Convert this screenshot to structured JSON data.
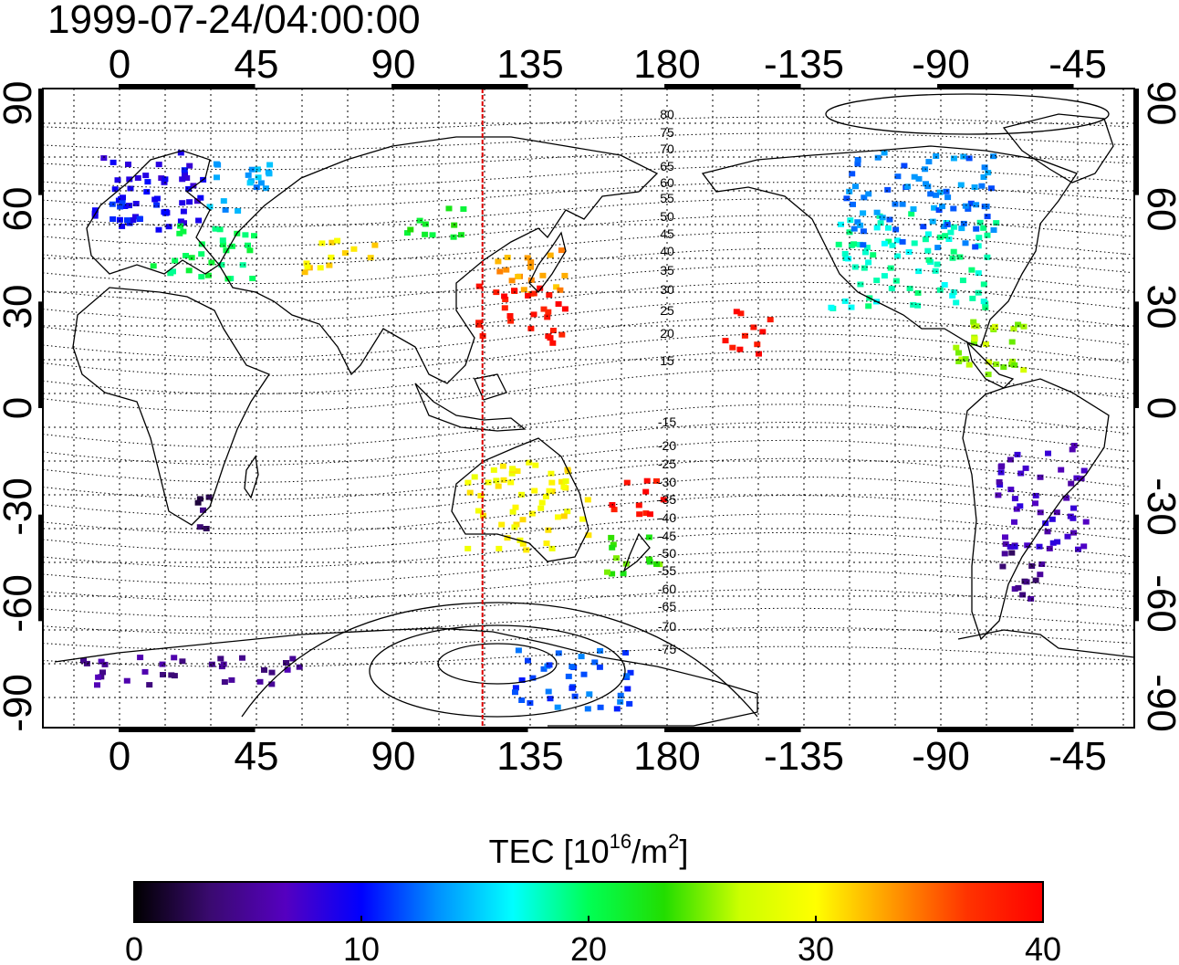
{
  "map": {
    "timestamp": "1999-07-24/04:00:00",
    "top_lon_labels": [
      "0",
      "45",
      "90",
      "135",
      "180",
      "-135",
      "-90",
      "-45"
    ],
    "bottom_lon_labels": [
      "0",
      "45",
      "90",
      "135",
      "180",
      "-135",
      "-90",
      "-45"
    ],
    "left_lat_labels": [
      "90",
      "60",
      "30",
      "0",
      "-30",
      "-60",
      "-90"
    ],
    "right_lat_labels": [
      "90",
      "60",
      "30",
      "0",
      "-30",
      "-60",
      "-90"
    ],
    "contour_labels_north": [
      "80",
      "75",
      "70",
      "65",
      "60",
      "55",
      "50",
      "45",
      "40",
      "35",
      "30",
      "25",
      "20",
      "15"
    ],
    "contour_labels_south": [
      "-15",
      "-20",
      "-25",
      "-30",
      "-35",
      "-40",
      "-45",
      "-50",
      "-55",
      "-60",
      "-65",
      "-70",
      "-75"
    ],
    "lon_range": [
      -25,
      335
    ],
    "lat_range": [
      -90,
      90
    ],
    "local_noon_meridian_lon": 120,
    "colors": {
      "meridian": "#dd0000",
      "frame": "#000000"
    }
  },
  "colorbar": {
    "title_prefix": "TEC  [10",
    "title_exp1": "16",
    "title_mid": "/m",
    "title_exp2": "2",
    "title_suffix": "]",
    "tick_labels": [
      "0",
      "10",
      "20",
      "30",
      "40"
    ],
    "range": [
      0,
      40
    ],
    "stops": [
      "#000000",
      "#3a0a70",
      "#5500c0",
      "#0000ff",
      "#0090ff",
      "#00ffff",
      "#00ff55",
      "#22dd00",
      "#ccff00",
      "#ffff00",
      "#ff9900",
      "#ff3300",
      "#ff0000"
    ]
  },
  "chart_data": {
    "type": "heatmap",
    "title": "1999-07-24/04:00:00",
    "colorbar_label": "TEC [10^16/m^2]",
    "clim": [
      0,
      40
    ],
    "regions": [
      {
        "lon": [
          -8,
          28
        ],
        "lat": [
          48,
          72
        ],
        "tec": 9
      },
      {
        "lon": [
          -5,
          20
        ],
        "lat": [
          52,
          62
        ],
        "tec": 10
      },
      {
        "lon": [
          10,
          45
        ],
        "lat": [
          36,
          52
        ],
        "tec": 20
      },
      {
        "lon": [
          30,
          50
        ],
        "lat": [
          55,
          72
        ],
        "tec": 14
      },
      {
        "lon": [
          60,
          85
        ],
        "lat": [
          38,
          48
        ],
        "tec": 31
      },
      {
        "lon": [
          95,
          115
        ],
        "lat": [
          48,
          58
        ],
        "tec": 22
      },
      {
        "lon": [
          125,
          148
        ],
        "lat": [
          30,
          45
        ],
        "tec": 33
      },
      {
        "lon": [
          118,
          148
        ],
        "lat": [
          18,
          35
        ],
        "tec": 39
      },
      {
        "lon": [
          200,
          215
        ],
        "lat": [
          15,
          28
        ],
        "tec": 39
      },
      {
        "lon": [
          235,
          290
        ],
        "lat": [
          28,
          55
        ],
        "tec": 18
      },
      {
        "lon": [
          240,
          290
        ],
        "lat": [
          45,
          72
        ],
        "tec": 13
      },
      {
        "lon": [
          275,
          300
        ],
        "lat": [
          5,
          25
        ],
        "tec": 26
      },
      {
        "lon": [
          290,
          320
        ],
        "lat": [
          -40,
          -10
        ],
        "tec": 7
      },
      {
        "lon": [
          290,
          305
        ],
        "lat": [
          -55,
          -40
        ],
        "tec": 4
      },
      {
        "lon": [
          25,
          35
        ],
        "lat": [
          -35,
          -25
        ],
        "tec": 3
      },
      {
        "lon": [
          115,
          155
        ],
        "lat": [
          -40,
          -15
        ],
        "tec": 30
      },
      {
        "lon": [
          160,
          180
        ],
        "lat": [
          -48,
          -35
        ],
        "tec": 24
      },
      {
        "lon": [
          160,
          180
        ],
        "lat": [
          -30,
          -20
        ],
        "tec": 39
      },
      {
        "lon": [
          -15,
          60
        ],
        "lat": [
          -78,
          -70
        ],
        "tec": 5
      },
      {
        "lon": [
          130,
          170
        ],
        "lat": [
          -85,
          -68
        ],
        "tec": 12
      }
    ]
  }
}
